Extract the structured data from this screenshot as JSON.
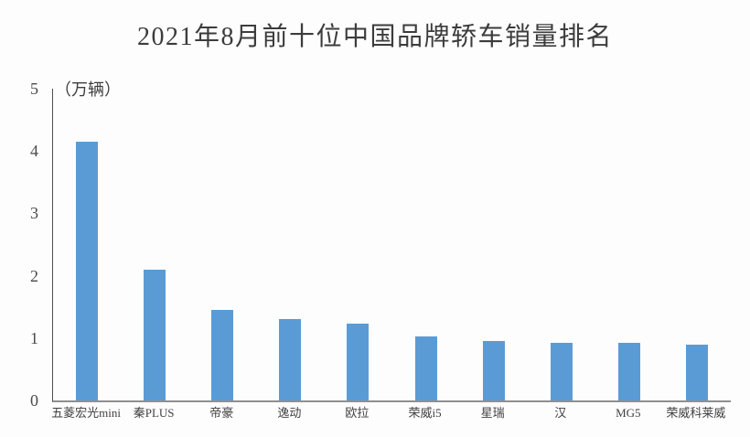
{
  "chart_data": {
    "type": "bar",
    "title": "2021年8月前十位中国品牌轿车销量排名",
    "unit_label": "（万辆）",
    "categories": [
      "五菱宏光mini",
      "秦PLUS",
      "帝豪",
      "逸动",
      "欧拉",
      "荣威i5",
      "星瑞",
      "汉",
      "MG5",
      "荣威科莱威"
    ],
    "values": [
      4.15,
      2.1,
      1.45,
      1.3,
      1.23,
      1.02,
      0.95,
      0.92,
      0.93,
      0.9
    ],
    "xlabel": "",
    "ylabel": "万辆",
    "ylim": [
      0,
      5
    ],
    "y_ticks": [
      0,
      1,
      2,
      3,
      4,
      5
    ],
    "grid": "off",
    "legend_position": "none",
    "bar_color": "#5B9BD5",
    "axis_line_color": "#4f4f4f",
    "baseline_color": "#8f8f8f",
    "title_color": "#3c3c3c",
    "tick_label_color": "#4a4a4a"
  }
}
